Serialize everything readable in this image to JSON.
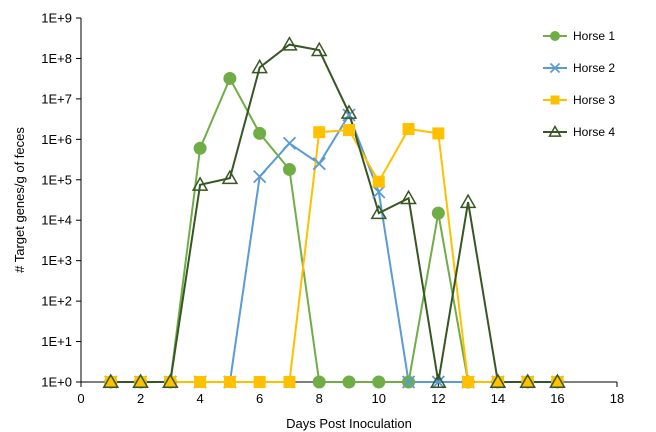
{
  "chart_data": {
    "type": "line",
    "title": "",
    "xlabel": "Days Post Inoculation",
    "ylabel": "# Target genes/g of feces",
    "xlim": [
      0,
      18
    ],
    "x_ticks": [
      0,
      2,
      4,
      6,
      8,
      10,
      12,
      14,
      16,
      18
    ],
    "y_scale": "log",
    "ylim": [
      1,
      1000000000
    ],
    "y_ticks": [
      1,
      10,
      100,
      1000,
      10000,
      100000,
      1000000,
      10000000,
      100000000,
      1000000000
    ],
    "y_tick_labels": [
      "1E+0",
      "1E+1",
      "1E+2",
      "1E+3",
      "1E+4",
      "1E+5",
      "1E+6",
      "1E+7",
      "1E+8",
      "1E+9"
    ],
    "grid": false,
    "legend_position": "top-right",
    "series": [
      {
        "name": "Horse 1",
        "color": "#70ad47",
        "marker": "circle",
        "x": [
          1,
          2,
          3,
          4,
          5,
          6,
          7,
          8,
          9,
          10,
          11,
          12,
          13,
          14,
          15,
          16
        ],
        "y": [
          1,
          1,
          1,
          600000,
          32000000,
          1400000,
          180000,
          1,
          1,
          1,
          1,
          15000,
          1,
          1,
          1,
          1
        ]
      },
      {
        "name": "Horse 2",
        "color": "#5b9bd5",
        "marker": "x",
        "x": [
          1,
          2,
          3,
          4,
          5,
          6,
          7,
          8,
          9,
          10,
          11,
          12,
          13,
          14,
          15,
          16
        ],
        "y": [
          1,
          1,
          1,
          1,
          1,
          120000,
          800000,
          250000,
          4000000,
          50000,
          1,
          1,
          1,
          1,
          1,
          1
        ]
      },
      {
        "name": "Horse 3",
        "color": "#ffc000",
        "marker": "square",
        "x": [
          1,
          2,
          3,
          4,
          5,
          6,
          7,
          8,
          9,
          10,
          11,
          12,
          13,
          14,
          15,
          16
        ],
        "y": [
          1,
          1,
          1,
          1,
          1,
          1,
          1,
          1500000,
          1700000,
          90000,
          1800000,
          1400000,
          1,
          1,
          1,
          1
        ]
      },
      {
        "name": "Horse 4",
        "color": "#375623",
        "marker": "triangle",
        "x": [
          1,
          2,
          3,
          4,
          5,
          6,
          7,
          8,
          9,
          10,
          11,
          12,
          13,
          14,
          15,
          16
        ],
        "y": [
          1,
          1,
          1,
          75000,
          110000,
          60000000,
          220000000,
          160000000,
          4500000,
          15000,
          35000,
          1,
          28000,
          1,
          1,
          1
        ]
      }
    ]
  }
}
